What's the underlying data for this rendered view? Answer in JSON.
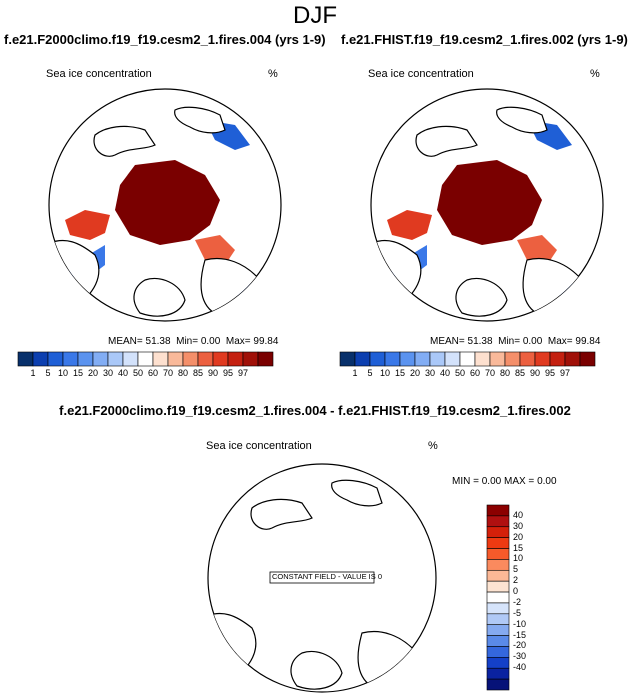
{
  "main_title": "DJF",
  "panels": [
    {
      "title": "f.e21.F2000climo.f19_f19.cesm2_1.fires.004 (yrs 1-9)",
      "variable": "Sea ice concentration",
      "units": "%",
      "stats": {
        "mean_label": "MEAN=",
        "mean": "51.38",
        "min_label": "Min=",
        "min": "0.00",
        "max_label": "Max=",
        "max": "99.84"
      }
    },
    {
      "title": "f.e21.FHIST.f19_f19.cesm2_1.fires.002 (yrs 1-9)",
      "variable": "Sea ice concentration",
      "units": "%",
      "stats": {
        "mean_label": "MEAN=",
        "mean": "51.38",
        "min_label": "Min=",
        "min": "0.00",
        "max_label": "Max=",
        "max": "99.84"
      }
    }
  ],
  "difference": {
    "title": "f.e21.F2000climo.f19_f19.cesm2_1.fires.004 - f.e21.FHIST.f19_f19.cesm2_1.fires.002",
    "variable": "Sea ice concentration",
    "units": "%",
    "min_label": "MIN =",
    "min": "0.00",
    "max_label": "MAX =",
    "max": "0.00",
    "annotation": "CONSTANT FIELD - VALUE IS 0"
  },
  "chart_data": [
    {
      "type": "heatmap",
      "projection": "north-polar-stereographic",
      "title": "f.e21.F2000climo.f19_f19.cesm2_1.fires.004 (yrs 1-9)",
      "variable": "Sea ice concentration",
      "units": "%",
      "mean": 51.38,
      "min": 0.0,
      "max": 99.84,
      "colorbar": {
        "orientation": "horizontal",
        "ticks": [
          "1",
          "5",
          "10",
          "15",
          "20",
          "30",
          "40",
          "50",
          "60",
          "70",
          "80",
          "85",
          "90",
          "95",
          "97"
        ],
        "colors": [
          "#08306b",
          "#0c3fb0",
          "#1f5fd6",
          "#3a78e8",
          "#5b93ef",
          "#82adf4",
          "#aac8f8",
          "#d3e2fb",
          "#ffffff",
          "#fde0cf",
          "#f9b99a",
          "#f48f6a",
          "#ec6040",
          "#e03a20",
          "#c42010",
          "#a01008",
          "#7a0000"
        ]
      }
    },
    {
      "type": "heatmap",
      "projection": "north-polar-stereographic",
      "title": "f.e21.FHIST.f19_f19.cesm2_1.fires.002 (yrs 1-9)",
      "variable": "Sea ice concentration",
      "units": "%",
      "mean": 51.38,
      "min": 0.0,
      "max": 99.84,
      "colorbar": {
        "orientation": "horizontal",
        "ticks": [
          "1",
          "5",
          "10",
          "15",
          "20",
          "30",
          "40",
          "50",
          "60",
          "70",
          "80",
          "85",
          "90",
          "95",
          "97"
        ],
        "colors": [
          "#08306b",
          "#0c3fb0",
          "#1f5fd6",
          "#3a78e8",
          "#5b93ef",
          "#82adf4",
          "#aac8f8",
          "#d3e2fb",
          "#ffffff",
          "#fde0cf",
          "#f9b99a",
          "#f48f6a",
          "#ec6040",
          "#e03a20",
          "#c42010",
          "#a01008",
          "#7a0000"
        ]
      }
    },
    {
      "type": "heatmap",
      "projection": "north-polar-stereographic",
      "title": "f.e21.F2000climo.f19_f19.cesm2_1.fires.004 - f.e21.FHIST.f19_f19.cesm2_1.fires.002",
      "variable": "Sea ice concentration",
      "units": "%",
      "min": 0.0,
      "max": 0.0,
      "constant_value": 0,
      "colorbar": {
        "orientation": "vertical",
        "ticks": [
          "40",
          "30",
          "20",
          "15",
          "10",
          "5",
          "2",
          "0",
          "-2",
          "-5",
          "-10",
          "-15",
          "-20",
          "-30",
          "-40"
        ],
        "colors": [
          "#8b0000",
          "#b01010",
          "#d4200a",
          "#ee3a12",
          "#f65a2a",
          "#fa8a5e",
          "#fcb896",
          "#fde4d2",
          "#ffffff",
          "#d6e4fb",
          "#b0c9f6",
          "#85aaf0",
          "#5a8ae8",
          "#3467dd",
          "#1440c8",
          "#0a22a0",
          "#061278"
        ]
      }
    }
  ]
}
